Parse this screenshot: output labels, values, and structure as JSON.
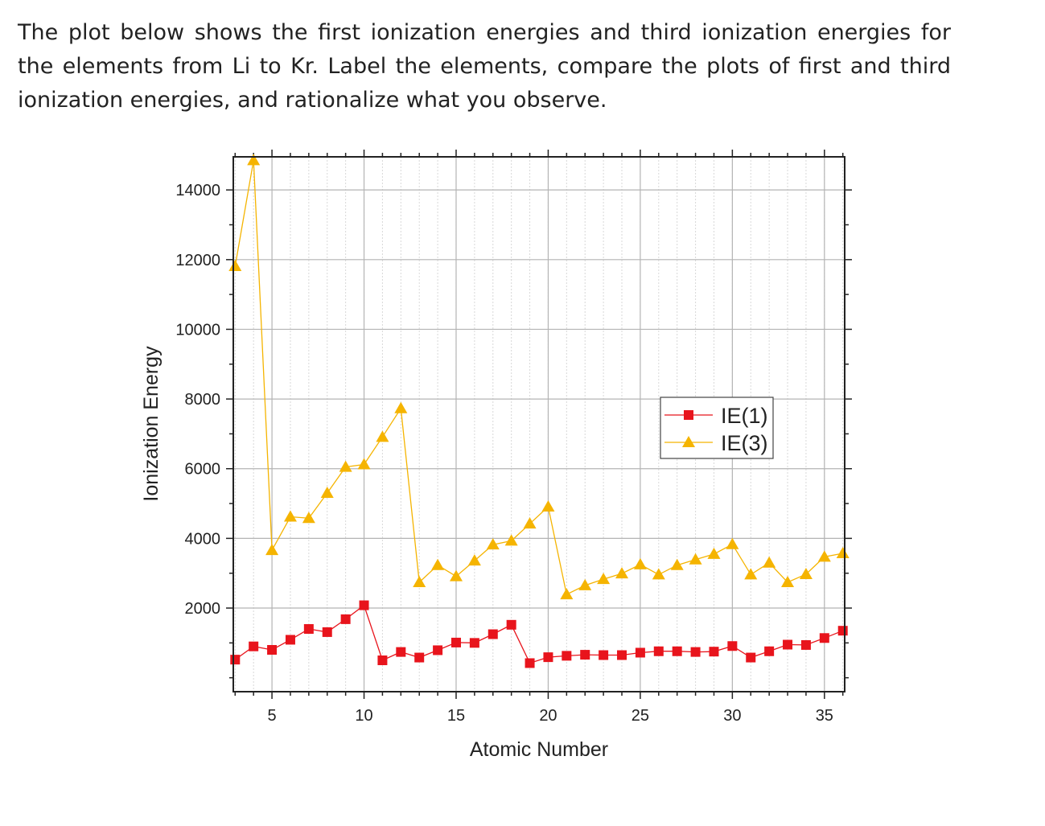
{
  "question_text": "The plot below shows the first ionization energies and third ionization energies for the elements from Li to Kr. Label the elements, compare the plots of first and third ionization energies, and rationalize what you observe.",
  "chart_data": {
    "type": "line",
    "xlabel": "Atomic Number",
    "ylabel": "Ionization Energy",
    "xlim": [
      2.9,
      36.1
    ],
    "ylim": [
      -400,
      14950
    ],
    "xticks": [
      5,
      10,
      15,
      20,
      25,
      30,
      35
    ],
    "yticks": [
      2000,
      4000,
      6000,
      8000,
      10000,
      12000,
      14000
    ],
    "grid": true,
    "legend_position": "right-center",
    "x": [
      3,
      4,
      5,
      6,
      7,
      8,
      9,
      10,
      11,
      12,
      13,
      14,
      15,
      16,
      17,
      18,
      19,
      20,
      21,
      22,
      23,
      24,
      25,
      26,
      27,
      28,
      29,
      30,
      31,
      32,
      33,
      34,
      35,
      36
    ],
    "series": [
      {
        "name": "IE(1)",
        "marker": "square",
        "color": "#e8141c",
        "values": [
          520,
          900,
          800,
          1090,
          1400,
          1310,
          1680,
          2080,
          500,
          740,
          580,
          790,
          1010,
          1000,
          1250,
          1520,
          420,
          590,
          630,
          660,
          650,
          650,
          720,
          760,
          760,
          740,
          750,
          910,
          580,
          760,
          950,
          940,
          1140,
          1350
        ]
      },
      {
        "name": "IE(3)",
        "marker": "triangle",
        "color": "#f5b400",
        "values": [
          11810,
          14850,
          3660,
          4620,
          4580,
          5300,
          6050,
          6120,
          6910,
          7730,
          2740,
          3230,
          2910,
          3360,
          3820,
          3930,
          4420,
          4910,
          2390,
          2650,
          2830,
          2990,
          3250,
          2960,
          3230,
          3390,
          3550,
          3830,
          2960,
          3300,
          2740,
          2970,
          3470,
          3570
        ]
      }
    ]
  }
}
